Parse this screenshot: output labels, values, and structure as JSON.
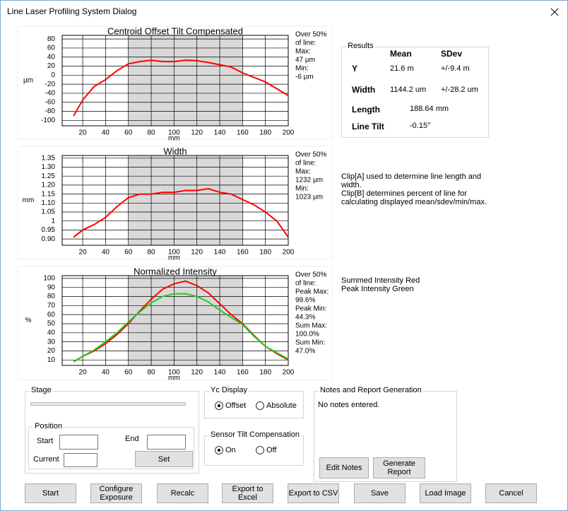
{
  "window": {
    "title": "Line Laser Profiling System Dialog"
  },
  "chart_data": [
    {
      "type": "line",
      "title": "Centroid Offset Tilt Compensated",
      "xlabel": "mm",
      "ylabel": "µm",
      "x": [
        12,
        20,
        30,
        40,
        50,
        60,
        70,
        80,
        90,
        100,
        110,
        120,
        130,
        140,
        150,
        160,
        170,
        180,
        190,
        200
      ],
      "series": [
        {
          "color": "#ff0000",
          "values": [
            -90,
            -55,
            -25,
            -10,
            10,
            25,
            30,
            33,
            30,
            30,
            33,
            32,
            28,
            23,
            18,
            5,
            -5,
            -15,
            -30,
            -45
          ]
        }
      ],
      "xlim": [
        2,
        200
      ],
      "ylim": [
        -112,
        88
      ],
      "xticks": [
        20,
        40,
        60,
        80,
        100,
        120,
        140,
        160,
        180,
        200
      ],
      "yticks": [
        80,
        60,
        40,
        20,
        0,
        -20,
        -40,
        -60,
        -80,
        -100
      ],
      "shade_range": [
        60,
        160
      ],
      "grid": true,
      "stats": [
        "Over 50%",
        "of line:",
        "Max:",
        "47 µm",
        "Min:",
        "-6 µm"
      ]
    },
    {
      "type": "line",
      "title": "Width",
      "xlabel": "mm",
      "ylabel": "mm",
      "x": [
        12,
        20,
        30,
        40,
        50,
        60,
        70,
        80,
        90,
        100,
        110,
        120,
        130,
        140,
        150,
        160,
        170,
        180,
        190,
        200
      ],
      "series": [
        {
          "color": "#ff0000",
          "values": [
            0.91,
            0.95,
            0.98,
            1.02,
            1.08,
            1.13,
            1.15,
            1.15,
            1.16,
            1.16,
            1.17,
            1.17,
            1.18,
            1.16,
            1.15,
            1.12,
            1.09,
            1.05,
            1.0,
            0.91
          ]
        }
      ],
      "xlim": [
        2,
        200
      ],
      "ylim": [
        0.865,
        1.365
      ],
      "xticks": [
        20,
        40,
        60,
        80,
        100,
        120,
        140,
        160,
        180,
        200
      ],
      "yticks": [
        1.35,
        {
          "value": 1.3,
          "label": "1.30"
        },
        1.25,
        {
          "value": 1.2,
          "label": "1.20"
        },
        1.15,
        {
          "value": 1.1,
          "label": "1.10"
        },
        1.05,
        1,
        0.95,
        {
          "value": 0.9,
          "label": "0.90"
        }
      ],
      "shade_range": [
        60,
        160
      ],
      "grid": true,
      "stats": [
        "Over 50%",
        "of line:",
        "Max:",
        "1232 µm",
        "Min:",
        "1023 µm"
      ]
    },
    {
      "type": "line",
      "title": "Normalized Intensity",
      "xlabel": "mm",
      "ylabel": "%",
      "x": [
        12,
        20,
        30,
        40,
        50,
        60,
        70,
        80,
        90,
        100,
        110,
        120,
        130,
        140,
        150,
        160,
        170,
        180,
        190,
        200
      ],
      "series": [
        {
          "name": "Summed Intensity Red",
          "color": "#ff0000",
          "values": [
            8,
            14,
            20,
            28,
            38,
            50,
            64,
            77,
            88,
            94,
            97,
            92,
            84,
            72,
            60,
            50,
            37,
            25,
            17,
            10
          ]
        },
        {
          "name": "Peak Intensity Green",
          "color": "#22cc22",
          "values": [
            8,
            14,
            21,
            30,
            40,
            52,
            63,
            73,
            80,
            83,
            83,
            80,
            74,
            65,
            57,
            49,
            36,
            25,
            18,
            11
          ]
        }
      ],
      "xlim": [
        2,
        200
      ],
      "ylim": [
        4,
        103
      ],
      "xticks": [
        20,
        40,
        60,
        80,
        100,
        120,
        140,
        160,
        180,
        200
      ],
      "yticks": [
        100,
        90,
        80,
        70,
        60,
        50,
        40,
        30,
        20,
        10
      ],
      "shade_range": [
        60,
        160
      ],
      "grid": true,
      "stats": [
        "Over 50%",
        "of line:",
        "Peak Max:",
        "99.6%",
        "Peak Min:",
        "44.3%",
        "Sum Max:",
        "100.0%",
        "Sum Min:",
        "47.0%"
      ]
    }
  ],
  "results": {
    "title": "Results",
    "headers": [
      "Mean",
      "SDev"
    ],
    "y": {
      "label": "Y",
      "mean": "21.6 m",
      "sdev": "+/-9.4 m"
    },
    "width": {
      "label": "Width",
      "mean": "1144.2 um",
      "sdev": "+/-28.2 um"
    },
    "length": {
      "label": "Length",
      "value": "188.64 mm"
    },
    "tilt": {
      "label": "Line Tilt",
      "value": "-0.15°"
    }
  },
  "clip_notes": [
    "Clip[A] used to determine line length and",
    "width.",
    "Clip[B] determines percent of line for",
    "calculating displayed mean/sdev/min/max."
  ],
  "stage": {
    "title": "Stage",
    "position": {
      "title": "Position",
      "start": "Start",
      "end": "End",
      "current": "Current",
      "set": "Set"
    }
  },
  "yc_display": {
    "title": "Yc Display",
    "options": [
      "Offset",
      "Absolute"
    ]
  },
  "tilt_comp": {
    "title": "Sensor Tilt Compensation",
    "options": [
      "On",
      "Off"
    ]
  },
  "notes_panel": {
    "title": "Notes and Report Generation",
    "text": "No notes entered.",
    "buttons": [
      "Edit Notes",
      "Generate Report"
    ]
  },
  "buttons": [
    "Start",
    "Configure Exposure",
    "Recalc",
    "Export to Excel",
    "Export to CSV",
    "Save",
    "Load Image",
    "Cancel"
  ]
}
